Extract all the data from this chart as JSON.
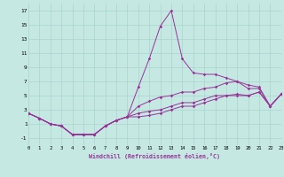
{
  "background_color": "#c5e8e2",
  "grid_color": "#a8d5cd",
  "line_color": "#993399",
  "xlim": [
    0,
    23
  ],
  "ylim": [
    -2,
    18
  ],
  "yticks": [
    -1,
    1,
    3,
    5,
    7,
    9,
    11,
    13,
    15,
    17
  ],
  "xticks": [
    0,
    1,
    2,
    3,
    4,
    5,
    6,
    7,
    8,
    9,
    10,
    11,
    12,
    13,
    14,
    15,
    16,
    17,
    18,
    19,
    20,
    21,
    22,
    23
  ],
  "xlabel": "Windchill (Refroidissement éolien,°C)",
  "lines": [
    [
      2.5,
      1.8,
      1.0,
      0.7,
      -0.5,
      -0.5,
      -0.5,
      0.7,
      1.5,
      2.0,
      6.2,
      10.2,
      14.8,
      17.0,
      10.2,
      8.2,
      8.0,
      8.0,
      7.5,
      7.0,
      6.0,
      6.0,
      3.5,
      5.2
    ],
    [
      2.5,
      1.8,
      1.0,
      0.7,
      -0.5,
      -0.5,
      -0.5,
      0.7,
      1.5,
      2.0,
      3.5,
      4.2,
      4.8,
      5.0,
      5.5,
      5.5,
      6.0,
      6.2,
      6.8,
      7.0,
      6.5,
      6.2,
      3.5,
      5.2
    ],
    [
      2.5,
      1.8,
      1.0,
      0.7,
      -0.5,
      -0.5,
      -0.5,
      0.7,
      1.5,
      2.0,
      2.5,
      2.8,
      3.0,
      3.5,
      4.0,
      4.0,
      4.5,
      5.0,
      5.0,
      5.2,
      5.0,
      5.5,
      3.5,
      5.2
    ],
    [
      2.5,
      1.8,
      1.0,
      0.7,
      -0.5,
      -0.5,
      -0.5,
      0.7,
      1.5,
      2.0,
      2.0,
      2.2,
      2.5,
      3.0,
      3.5,
      3.5,
      4.0,
      4.5,
      5.0,
      5.0,
      5.0,
      5.5,
      3.5,
      5.2
    ]
  ]
}
